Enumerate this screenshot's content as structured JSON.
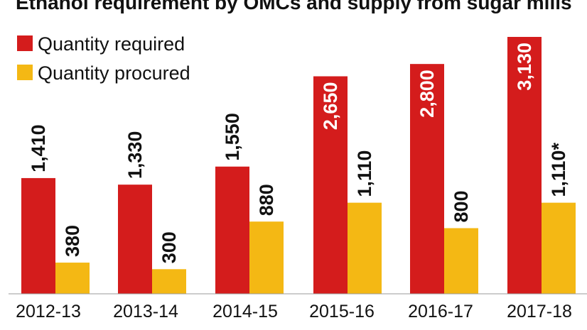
{
  "chart_data": {
    "type": "bar",
    "title": "Ethanol requirement by OMCs and supply from sugar mills",
    "categories": [
      "2012-13",
      "2013-14",
      "2014-15",
      "2015-16",
      "2016-17",
      "2017-18"
    ],
    "series": [
      {
        "name": "Quantity required",
        "color": "#d41c1c",
        "values": [
          1410,
          1330,
          1550,
          2650,
          2800,
          3130
        ],
        "labels": [
          "1,410",
          "1,330",
          "1,550",
          "2,650",
          "2,800",
          "3,130"
        ]
      },
      {
        "name": "Quantity procured",
        "color": "#f4b814",
        "values": [
          380,
          300,
          880,
          1110,
          800,
          1110
        ],
        "labels": [
          "380",
          "300",
          "880",
          "1,110",
          "800",
          "1,110*"
        ]
      }
    ],
    "legend_position": "top-left",
    "ylim": [
      0,
      3130
    ],
    "grid": false
  }
}
